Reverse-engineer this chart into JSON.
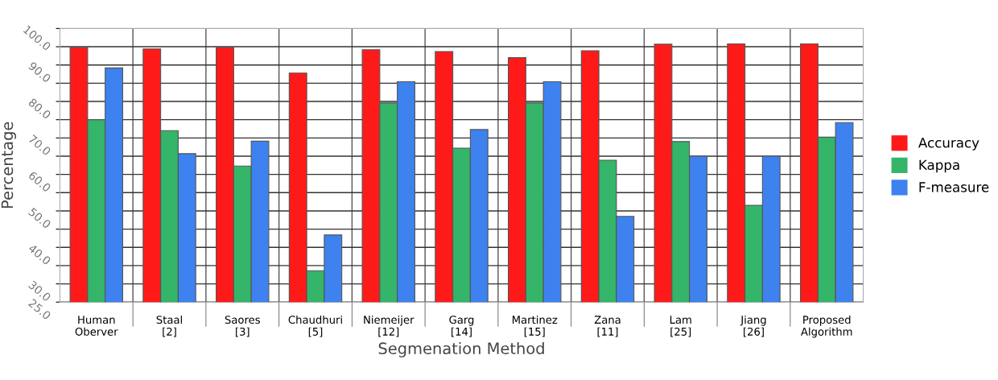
{
  "chart_data": {
    "type": "bar",
    "xlabel": "Segmenation Method",
    "ylabel": "Percentage",
    "categories": [
      "Human\nOberver",
      "Staal\n[2]",
      "Saores\n[3]",
      "Chaudhuri\n[5]",
      "Niemeijer\n[12]",
      "Garg\n[14]",
      "Martinez\n[15]",
      "Zana\n[11]",
      "Lam\n[25]",
      "Jiang\n[26]",
      "Proposed\nAlgorithm"
    ],
    "series": [
      {
        "name": "Accuracy",
        "color": "#ff1a1a",
        "values": [
          94.8,
          94.4,
          94.8,
          87.8,
          94.2,
          93.7,
          92.0,
          93.9,
          95.7,
          95.8,
          95.8
        ]
      },
      {
        "name": "Kappa",
        "color": "#34b56a",
        "values": [
          75.0,
          72.0,
          62.3,
          33.6,
          79.6,
          67.2,
          79.6,
          63.9,
          69.0,
          51.5,
          70.2
        ]
      },
      {
        "name": "F-measure",
        "color": "#3d82ee",
        "values": [
          89.2,
          65.7,
          69.1,
          43.4,
          85.4,
          72.3,
          85.4,
          48.5,
          65.0,
          65.0,
          74.2
        ]
      }
    ],
    "ylim": [
      25,
      100
    ],
    "yticks": [
      {
        "value": 25,
        "label": "25.0"
      },
      {
        "value": 30,
        "label": "30.0"
      },
      {
        "value": 35,
        "label": null
      },
      {
        "value": 40,
        "label": "40.0"
      },
      {
        "value": 45,
        "label": null
      },
      {
        "value": 50,
        "label": "50.0"
      },
      {
        "value": 55,
        "label": null
      },
      {
        "value": 60,
        "label": "60.0"
      },
      {
        "value": 65,
        "label": null
      },
      {
        "value": 70,
        "label": "70.0"
      },
      {
        "value": 75,
        "label": null
      },
      {
        "value": 80,
        "label": "80.0"
      },
      {
        "value": 85,
        "label": null
      },
      {
        "value": 90,
        "label": "90.0"
      },
      {
        "value": 95,
        "label": null
      },
      {
        "value": 100,
        "label": "100.0"
      }
    ],
    "grid": true,
    "legend": "right"
  }
}
